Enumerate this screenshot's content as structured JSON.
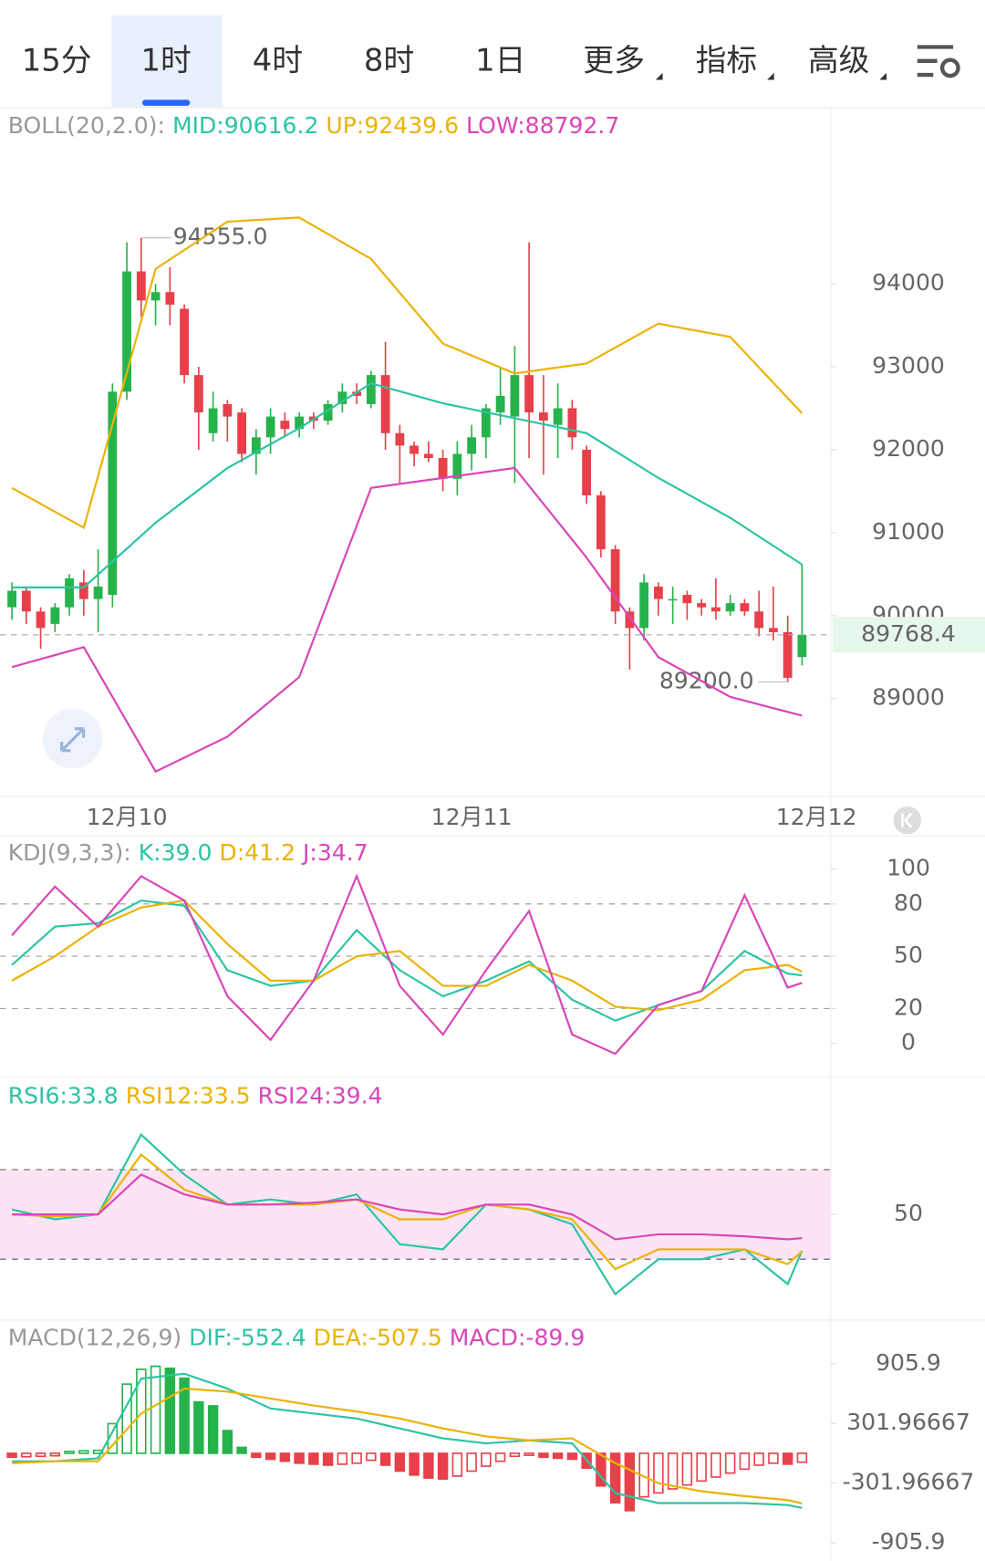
{
  "tabs": [
    "15分",
    "1时",
    "4时",
    "8时",
    "1日",
    "更多",
    "指标",
    "高级"
  ],
  "chart_data": [
    {
      "type": "candlestick",
      "title": "BOLL(20,2.0):",
      "up_color": "#27b34c",
      "down_color": "#e8404a",
      "xlim": [
        -0.83,
        57
      ],
      "xticks": [
        {
          "value": 8,
          "label": "12月10"
        },
        {
          "value": 32,
          "label": "12月11"
        },
        {
          "value": 56,
          "label": "12月12"
        }
      ],
      "ylim": [
        87820,
        96124
      ],
      "yticks": [
        89000,
        90000,
        91000,
        92000,
        93000,
        94000
      ],
      "candles": [
        [
          90100,
          90400,
          89950,
          90300
        ],
        [
          90300,
          90350,
          89900,
          90050
        ],
        [
          90050,
          90100,
          89600,
          89850
        ],
        [
          89900,
          90150,
          89800,
          90100
        ],
        [
          90100,
          90500,
          90000,
          90450
        ],
        [
          90400,
          90550,
          90000,
          90200
        ],
        [
          90200,
          90800,
          89800,
          90350
        ],
        [
          90250,
          92800,
          90100,
          92700
        ],
        [
          92700,
          94500,
          92600,
          94150
        ],
        [
          94150,
          94555,
          93600,
          93800
        ],
        [
          93800,
          94000,
          93500,
          93900
        ],
        [
          93900,
          94200,
          93500,
          93750
        ],
        [
          93700,
          93750,
          92800,
          92900
        ],
        [
          92900,
          93000,
          92000,
          92450
        ],
        [
          92200,
          92700,
          92100,
          92500
        ],
        [
          92550,
          92600,
          92100,
          92400
        ],
        [
          92450,
          92500,
          91850,
          91950
        ],
        [
          91950,
          92250,
          91700,
          92150
        ],
        [
          92150,
          92500,
          91950,
          92400
        ],
        [
          92350,
          92450,
          92150,
          92250
        ],
        [
          92250,
          92450,
          92150,
          92400
        ],
        [
          92400,
          92450,
          92250,
          92350
        ],
        [
          92350,
          92600,
          92300,
          92550
        ],
        [
          92550,
          92800,
          92450,
          92700
        ],
        [
          92700,
          92800,
          92550,
          92650
        ],
        [
          92550,
          92950,
          92500,
          92900
        ],
        [
          92900,
          93300,
          92000,
          92200
        ],
        [
          92200,
          92300,
          91600,
          92050
        ],
        [
          92050,
          92100,
          91800,
          91950
        ],
        [
          91950,
          92100,
          91850,
          91900
        ],
        [
          91900,
          92000,
          91500,
          91650
        ],
        [
          91650,
          92100,
          91450,
          91950
        ],
        [
          91950,
          92300,
          91750,
          92150
        ],
        [
          92150,
          92550,
          91900,
          92500
        ],
        [
          92450,
          93000,
          92300,
          92650
        ],
        [
          92400,
          93250,
          91600,
          92900
        ],
        [
          92900,
          94500,
          91900,
          92450
        ],
        [
          92450,
          92900,
          91700,
          92350
        ],
        [
          92300,
          92800,
          91900,
          92500
        ],
        [
          92500,
          92600,
          92000,
          92150
        ],
        [
          92000,
          92050,
          91350,
          91450
        ],
        [
          91450,
          91500,
          90700,
          90800
        ],
        [
          90800,
          90850,
          89900,
          90050
        ],
        [
          90050,
          90100,
          89350,
          89850
        ],
        [
          89850,
          90500,
          89700,
          90400
        ],
        [
          90350,
          90400,
          90000,
          90200
        ],
        [
          90200,
          90350,
          89900,
          90200
        ],
        [
          90250,
          90300,
          89950,
          90150
        ],
        [
          90150,
          90200,
          90000,
          90100
        ],
        [
          90100,
          90450,
          89950,
          90050
        ],
        [
          90050,
          90250,
          90000,
          90150
        ],
        [
          90150,
          90200,
          90000,
          90050
        ],
        [
          90050,
          90300,
          89750,
          89850
        ],
        [
          89850,
          90350,
          89700,
          89800
        ],
        [
          89800,
          90000,
          89200,
          89250
        ],
        [
          89500,
          90616.2,
          89400,
          89768.4
        ]
      ],
      "series": [
        {
          "name": "MID:90616.2",
          "color": "#2cc4a4",
          "x": [
            0,
            5,
            10,
            15,
            20,
            25,
            30,
            35,
            40,
            45,
            50,
            55
          ],
          "values": [
            90340,
            90340,
            91120,
            91780,
            92260,
            92800,
            92560,
            92380,
            92200,
            91660,
            91180,
            90616.2
          ]
        },
        {
          "name": "UP:92439.6",
          "color": "#eab308",
          "x": [
            0,
            5,
            10,
            15,
            20,
            25,
            30,
            35,
            40,
            45,
            50,
            55
          ],
          "values": [
            91540,
            91060,
            94180,
            94750,
            94800,
            94300,
            93280,
            92920,
            93040,
            93520,
            93360,
            92439.6
          ]
        },
        {
          "name": "LOW:88792.7",
          "color": "#d946b8",
          "x": [
            0,
            5,
            10,
            15,
            20,
            25,
            30,
            35,
            40,
            45,
            50,
            55
          ],
          "values": [
            89380,
            89620,
            88120,
            88540,
            89260,
            91540,
            91660,
            91780,
            90700,
            89500,
            89020,
            88792.7
          ]
        }
      ],
      "annotations": [
        {
          "text": "94555.0",
          "index": 9,
          "value": 94555
        },
        {
          "text": "89200.0",
          "index": 54,
          "value": 89200
        }
      ],
      "last_price": 89768.4
    },
    {
      "type": "line",
      "title": "KDJ(9,3,3):",
      "ylim": [
        -19.4,
        118.9
      ],
      "yticks": [
        0,
        20,
        50,
        80,
        100
      ],
      "levels": [
        20,
        50,
        80
      ],
      "series": [
        {
          "name": "K:39.0",
          "color": "#2cc4a4",
          "x": [
            0,
            3,
            6,
            9,
            12,
            15,
            18,
            21,
            24,
            27,
            30,
            33,
            36,
            39,
            42,
            45,
            48,
            51,
            54,
            55
          ],
          "values": [
            45,
            67,
            69,
            82,
            79,
            42,
            33,
            36,
            65,
            42,
            27,
            36,
            47,
            25,
            13,
            22,
            30,
            53,
            40,
            39
          ]
        },
        {
          "name": "D:41.2",
          "color": "#eab308",
          "x": [
            0,
            3,
            6,
            9,
            12,
            15,
            18,
            21,
            24,
            27,
            30,
            33,
            36,
            39,
            42,
            45,
            48,
            51,
            54,
            55
          ],
          "values": [
            36,
            50,
            67,
            78,
            82,
            57,
            36,
            36,
            50,
            53,
            33,
            33,
            45,
            36,
            21,
            19,
            25,
            42,
            45,
            41.2
          ]
        },
        {
          "name": "J:34.7",
          "color": "#d946b8",
          "x": [
            0,
            3,
            6,
            9,
            12,
            15,
            18,
            21,
            24,
            27,
            30,
            33,
            36,
            39,
            42,
            45,
            48,
            51,
            54,
            55
          ],
          "values": [
            62,
            90,
            67,
            96,
            82,
            27,
            2,
            36,
            96,
            33,
            5,
            42,
            76,
            5,
            -6,
            22,
            30,
            85,
            32,
            34.7
          ]
        }
      ]
    },
    {
      "type": "line",
      "ylim": [
        2.9,
        111.3
      ],
      "yticks": [
        50
      ],
      "band": [
        30,
        70
      ],
      "band_color": "#fce4f4",
      "series": [
        {
          "name": "RSI6:33.8",
          "color": "#2cc4a4",
          "x": [
            0,
            3,
            6,
            9,
            12,
            15,
            18,
            21,
            24,
            27,
            30,
            33,
            36,
            39,
            42,
            45,
            48,
            51,
            54,
            55
          ],
          "values": [
            52.2,
            47.8,
            50,
            85.6,
            67.8,
            54.4,
            56.7,
            54.4,
            58.9,
            36.7,
            34.4,
            54.4,
            52.2,
            45.6,
            14.4,
            30,
            30,
            34.4,
            18.9,
            33.8
          ]
        },
        {
          "name": "RSI12:33.5",
          "color": "#eab308",
          "x": [
            0,
            3,
            6,
            9,
            12,
            15,
            18,
            21,
            24,
            27,
            30,
            33,
            36,
            39,
            42,
            45,
            48,
            51,
            54,
            55
          ],
          "values": [
            50,
            49.1,
            50,
            76.7,
            61.1,
            54.4,
            54.4,
            54.4,
            56.7,
            47.8,
            47.8,
            54.4,
            52.2,
            47.8,
            25.6,
            34.4,
            34.4,
            34.4,
            27.8,
            33.5
          ]
        },
        {
          "name": "RSI24:39.4",
          "color": "#d946b8",
          "x": [
            0,
            3,
            6,
            9,
            12,
            15,
            18,
            21,
            24,
            27,
            30,
            33,
            36,
            39,
            42,
            45,
            48,
            51,
            54,
            55
          ],
          "values": [
            50,
            50,
            50,
            67.8,
            58.9,
            54.4,
            54.4,
            55.3,
            56.7,
            52.2,
            50,
            54.4,
            54.4,
            50,
            38.9,
            41.1,
            41.1,
            40.2,
            38.9,
            39.4
          ]
        }
      ]
    },
    {
      "type": "macd",
      "title": "MACD(12,26,9)",
      "ylim": [
        -1087,
        1349
      ],
      "yticks": [
        905.9,
        301.96667,
        -301.96667,
        -905.9
      ],
      "series": [
        {
          "name": "DIF:-552.4",
          "color": "#2cc4a4",
          "x": [
            0,
            3,
            6,
            9,
            12,
            15,
            18,
            21,
            24,
            27,
            30,
            33,
            36,
            39,
            42,
            45,
            48,
            51,
            54,
            55
          ],
          "values": [
            -80,
            -80,
            -50,
            755,
            805,
            654,
            453,
            403,
            352,
            252,
            151,
            101,
            131,
            101,
            -403,
            -503,
            -503,
            -503,
            -523,
            -552.4
          ]
        },
        {
          "name": "DEA:-507.5",
          "color": "#eab308",
          "x": [
            0,
            3,
            6,
            9,
            12,
            15,
            18,
            21,
            24,
            27,
            30,
            33,
            36,
            39,
            42,
            45,
            48,
            51,
            54,
            55
          ],
          "values": [
            -100,
            -80,
            -80,
            403,
            654,
            624,
            554,
            483,
            423,
            352,
            252,
            171,
            131,
            151,
            -100,
            -302,
            -383,
            -433,
            -473,
            -507.5
          ]
        }
      ],
      "histogram": {
        "name": "MACD:-89.9",
        "color": "#d946b8",
        "values": [
          -40,
          -35,
          -30,
          -25,
          20,
          25,
          30,
          300,
          700,
          850,
          880,
          860,
          760,
          520,
          480,
          230,
          60,
          -40,
          -60,
          -80,
          -100,
          -110,
          -120,
          -110,
          -100,
          -70,
          -120,
          -180,
          -220,
          -250,
          -260,
          -230,
          -180,
          -130,
          -80,
          -30,
          -20,
          -40,
          -50,
          -60,
          -150,
          -330,
          -500,
          -580,
          -440,
          -400,
          -360,
          -320,
          -280,
          -240,
          -200,
          -160,
          -120,
          -100,
          -110,
          -89.9
        ]
      }
    }
  ]
}
